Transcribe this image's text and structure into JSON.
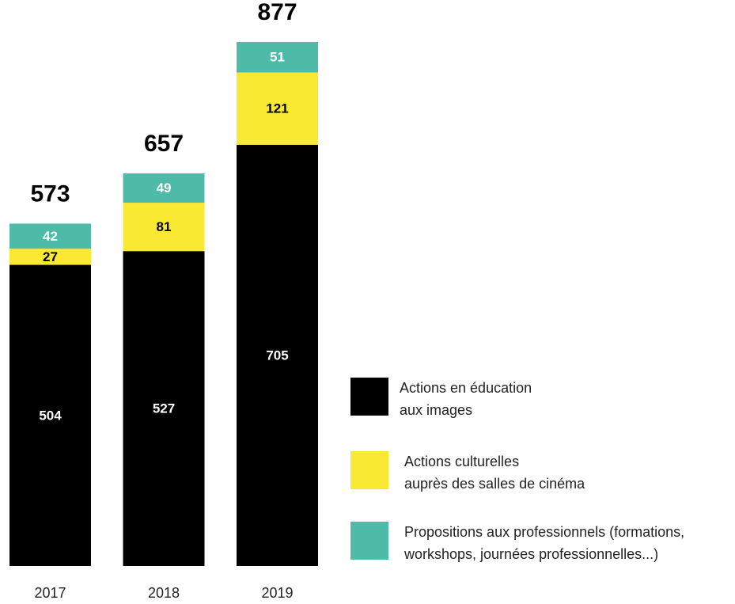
{
  "chart_data": {
    "type": "stacked_bar",
    "categories": [
      "2017",
      "2018",
      "2019"
    ],
    "totals": [
      573,
      657,
      877
    ],
    "series": [
      {
        "name": "Actions en éducation\naux images",
        "color": "#000000",
        "label_color": "#ffffff",
        "values": [
          504,
          527,
          705
        ]
      },
      {
        "name": "Actions culturelles\nauprès des salles de cinéma",
        "color": "#f9e932",
        "label_color": "#000000",
        "values": [
          27,
          81,
          121
        ]
      },
      {
        "name": "Propositions aux professionnels (formations,\nworkshops, journées professionnelles...)",
        "color": "#4dbba8",
        "label_color": "#ffffff",
        "values": [
          42,
          49,
          51
        ]
      }
    ]
  }
}
